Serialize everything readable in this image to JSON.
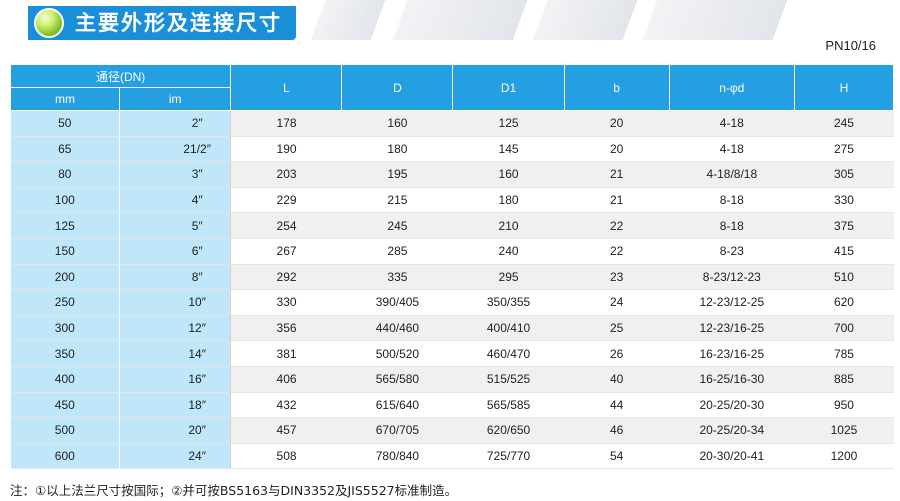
{
  "title": "主要外形及连接尺寸",
  "standard": "PN10/16",
  "table": {
    "dn_header": "通径(DN)",
    "sub_headers": [
      "mm",
      "im"
    ],
    "columns": [
      "L",
      "D",
      "D1",
      "b",
      "n-φd",
      "H"
    ],
    "rows": [
      {
        "mm": "50",
        "im": "2″",
        "L": "178",
        "D": "160",
        "D1": "125",
        "b": "20",
        "nd": "4-18",
        "H": "245"
      },
      {
        "mm": "65",
        "im": "21/2″",
        "L": "190",
        "D": "180",
        "D1": "145",
        "b": "20",
        "nd": "4-18",
        "H": "275"
      },
      {
        "mm": "80",
        "im": "3″",
        "L": "203",
        "D": "195",
        "D1": "160",
        "b": "21",
        "nd": "4-18/8/18",
        "H": "305"
      },
      {
        "mm": "100",
        "im": "4″",
        "L": "229",
        "D": "215",
        "D1": "180",
        "b": "21",
        "nd": "8-18",
        "H": "330"
      },
      {
        "mm": "125",
        "im": "5″",
        "L": "254",
        "D": "245",
        "D1": "210",
        "b": "22",
        "nd": "8-18",
        "H": "375"
      },
      {
        "mm": "150",
        "im": "6″",
        "L": "267",
        "D": "285",
        "D1": "240",
        "b": "22",
        "nd": "8-23",
        "H": "415"
      },
      {
        "mm": "200",
        "im": "8″",
        "L": "292",
        "D": "335",
        "D1": "295",
        "b": "23",
        "nd": "8-23/12-23",
        "H": "510"
      },
      {
        "mm": "250",
        "im": "10″",
        "L": "330",
        "D": "390/405",
        "D1": "350/355",
        "b": "24",
        "nd": "12-23/12-25",
        "H": "620"
      },
      {
        "mm": "300",
        "im": "12″",
        "L": "356",
        "D": "440/460",
        "D1": "400/410",
        "b": "25",
        "nd": "12-23/16-25",
        "H": "700"
      },
      {
        "mm": "350",
        "im": "14″",
        "L": "381",
        "D": "500/520",
        "D1": "460/470",
        "b": "26",
        "nd": "16-23/16-25",
        "H": "785"
      },
      {
        "mm": "400",
        "im": "16″",
        "L": "406",
        "D": "565/580",
        "D1": "515/525",
        "b": "40",
        "nd": "16-25/16-30",
        "H": "885"
      },
      {
        "mm": "450",
        "im": "18″",
        "L": "432",
        "D": "615/640",
        "D1": "565/585",
        "b": "44",
        "nd": "20-25/20-30",
        "H": "950"
      },
      {
        "mm": "500",
        "im": "20″",
        "L": "457",
        "D": "670/705",
        "D1": "620/650",
        "b": "46",
        "nd": "20-25/20-34",
        "H": "1025"
      },
      {
        "mm": "600",
        "im": "24″",
        "L": "508",
        "D": "780/840",
        "D1": "725/770",
        "b": "54",
        "nd": "20-30/20-41",
        "H": "1200"
      }
    ]
  },
  "note": "注：①以上法兰尺寸按国际；②并可按BS5163与DIN3352及JIS5527标准制造。",
  "colors": {
    "header": "#24a0e2",
    "dn_cell": "#bfe7f9",
    "title_bar": "#1a8fd8"
  }
}
